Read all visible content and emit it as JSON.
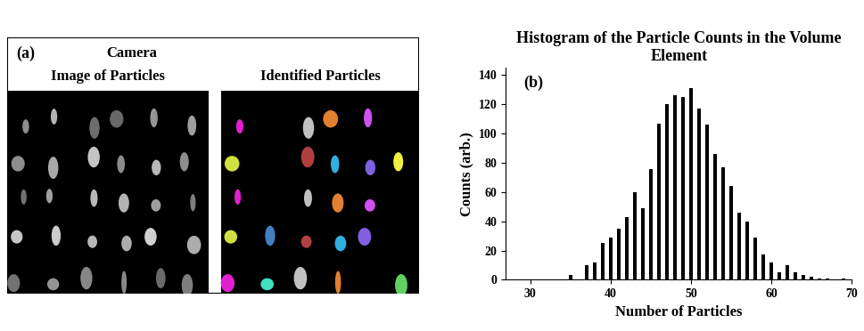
{
  "image_panel": {
    "label": "(a)",
    "title": "Camera",
    "left_caption": "Image of Particles",
    "right_caption": "Identified Particles"
  },
  "chart_data": {
    "type": "bar",
    "title": "Histogram of the Particle Counts in the Volume Element",
    "annotations": [
      "(b)"
    ],
    "x_label": "Number of Particles",
    "y_label": "Counts (arb.)",
    "x": [
      35,
      36,
      37,
      38,
      39,
      40,
      41,
      42,
      43,
      44,
      45,
      46,
      47,
      48,
      49,
      50,
      51,
      52,
      53,
      54,
      55,
      56,
      57,
      58,
      59,
      60,
      61,
      62,
      63,
      64,
      65,
      66,
      67,
      68,
      69
    ],
    "values": [
      3,
      0,
      10,
      12,
      25,
      29,
      35,
      43,
      60,
      49,
      76,
      107,
      120,
      126,
      125,
      131,
      117,
      106,
      86,
      77,
      64,
      46,
      40,
      29,
      17,
      12,
      5,
      10,
      5,
      3,
      2,
      1,
      1,
      0,
      1
    ],
    "color": "#000000",
    "xlim": [
      27,
      70
    ],
    "xticks": [
      30,
      40,
      50,
      60,
      70
    ],
    "ylim": [
      0,
      145
    ],
    "yticks": [
      0,
      20,
      40,
      60,
      80,
      100,
      120,
      140
    ],
    "grid": false
  }
}
